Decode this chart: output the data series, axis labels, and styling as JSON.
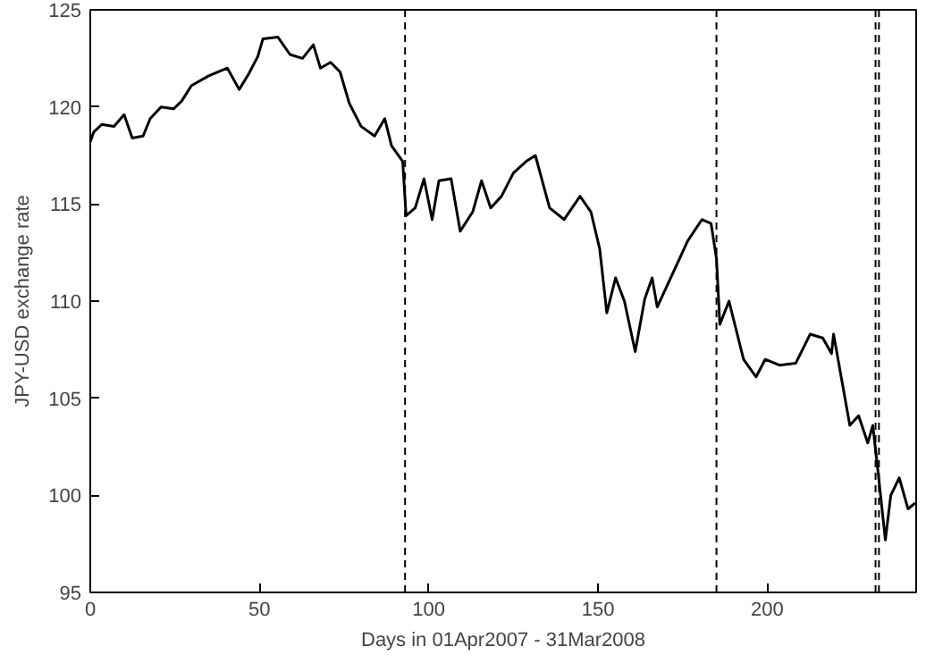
{
  "chart_data": {
    "type": "line",
    "xlabel": "Days in 01Apr2007 - 31Mar2008",
    "ylabel": "JPY-USD exchange rate",
    "xlim": [
      0,
      244
    ],
    "ylim": [
      95,
      125
    ],
    "xticks": [
      0,
      50,
      100,
      150,
      200
    ],
    "yticks": [
      95,
      100,
      105,
      110,
      115,
      120,
      125
    ],
    "grid": false,
    "marker": "none",
    "line_style": "solid",
    "series": [
      {
        "color": "#000000",
        "x": [
          0,
          1,
          3.4,
          7,
          10,
          12.4,
          15.6,
          17.7,
          20.9,
          24.6,
          27,
          29.9,
          35,
          40.5,
          44,
          46.8,
          49.5,
          51,
          55.4,
          59,
          62.7,
          65.9,
          68,
          71,
          73.8,
          76.5,
          80,
          84,
          87,
          89,
          92.3,
          93.3,
          96,
          98.6,
          101,
          103,
          106.6,
          109.3,
          113,
          115.6,
          118.3,
          121.5,
          125,
          128.8,
          131.5,
          135.7,
          140,
          144.7,
          147.9,
          150.5,
          152.6,
          155.2,
          157.8,
          161,
          163.8,
          166,
          167.5,
          172.8,
          176.5,
          180.7,
          183.4,
          185,
          186,
          188.7,
          193,
          196.7,
          199.4,
          203.6,
          208.4,
          212.7,
          216.4,
          219,
          219.6,
          224.4,
          227,
          229.7,
          231.2,
          232.8,
          234.9,
          236.5,
          239,
          241.6,
          243.7
        ],
        "values": [
          118.2,
          118.7,
          119.1,
          119.0,
          119.6,
          118.4,
          118.5,
          119.4,
          120.0,
          119.9,
          120.3,
          121.1,
          121.6,
          122.0,
          120.9,
          121.7,
          122.6,
          123.5,
          123.6,
          122.7,
          122.5,
          123.2,
          122.0,
          122.3,
          121.8,
          120.2,
          119.0,
          118.5,
          119.4,
          118.0,
          117.2,
          114.4,
          114.8,
          116.3,
          114.2,
          116.2,
          116.3,
          113.6,
          114.6,
          116.2,
          114.8,
          115.4,
          116.6,
          117.2,
          117.5,
          114.8,
          114.2,
          115.4,
          114.6,
          112.7,
          109.4,
          111.2,
          110.0,
          107.4,
          110.1,
          111.2,
          109.7,
          111.7,
          113.1,
          114.2,
          114.0,
          112.2,
          108.8,
          110.0,
          107.0,
          106.1,
          107.0,
          106.7,
          106.8,
          108.3,
          108.1,
          107.3,
          108.3,
          103.6,
          104.1,
          102.7,
          103.6,
          101.1,
          97.7,
          100.0,
          100.9,
          99.3,
          99.6
        ]
      }
    ],
    "ref_lines": [
      {
        "axis": "x",
        "value": 93,
        "color": "#000000",
        "line_style": "dashed"
      },
      {
        "axis": "x",
        "value": 185,
        "color": "#000000",
        "line_style": "dashed"
      },
      {
        "axis": "x",
        "value": 232,
        "color": "#000000",
        "line_style": "dashed"
      },
      {
        "axis": "x",
        "value": 233,
        "color": "#000000",
        "line_style": "dashed"
      }
    ]
  }
}
